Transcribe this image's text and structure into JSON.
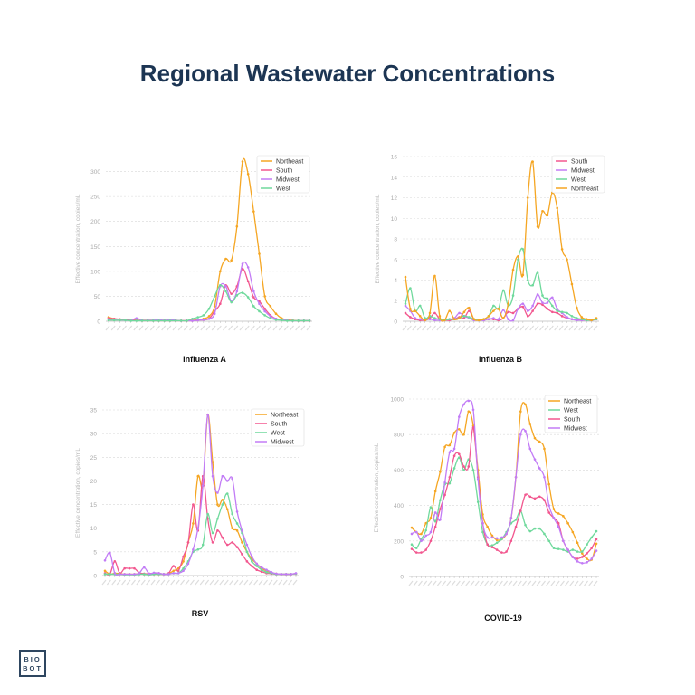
{
  "page_title": "Regional Wastewater Concentrations",
  "logo_text": [
    "BIO",
    "BOT"
  ],
  "colors": {
    "Northeast": "#f5a623",
    "South": "#f2578f",
    "Midwest": "#c27cf6",
    "West": "#6fd99c",
    "title": "#1c3553"
  },
  "chart_data": [
    {
      "type": "line",
      "title": "Influenza A",
      "ylabel": "Effective concentration, copies/mL",
      "ylim": [
        0,
        330
      ],
      "yticks": [
        0,
        50,
        100,
        150,
        200,
        250,
        300
      ],
      "grid": true,
      "legend_position": "top-right",
      "legend": [
        "Northeast",
        "South",
        "Midwest",
        "West"
      ],
      "series": [
        {
          "name": "Northeast",
          "values": [
            8,
            5,
            4,
            3,
            3,
            2,
            2,
            2,
            2,
            2,
            2,
            2,
            2,
            1,
            1,
            2,
            3,
            5,
            10,
            30,
            100,
            125,
            122,
            190,
            320,
            295,
            220,
            135,
            50,
            30,
            15,
            6,
            3,
            2,
            1,
            1,
            1
          ]
        },
        {
          "name": "South",
          "values": [
            6,
            5,
            4,
            3,
            2,
            2,
            1,
            1,
            1,
            1,
            1,
            1,
            1,
            1,
            1,
            1,
            2,
            3,
            5,
            20,
            35,
            72,
            55,
            70,
            105,
            80,
            48,
            40,
            25,
            12,
            5,
            3,
            2,
            1,
            1,
            1,
            1
          ]
        },
        {
          "name": "Midwest",
          "values": [
            4,
            3,
            2,
            2,
            2,
            6,
            2,
            2,
            2,
            3,
            2,
            3,
            2,
            1,
            1,
            1,
            2,
            3,
            5,
            15,
            70,
            70,
            40,
            60,
            115,
            108,
            60,
            35,
            20,
            10,
            5,
            3,
            2,
            1,
            1,
            1,
            1
          ]
        },
        {
          "name": "West",
          "values": [
            2,
            2,
            2,
            2,
            1,
            1,
            1,
            1,
            1,
            1,
            1,
            1,
            1,
            1,
            1,
            5,
            8,
            12,
            25,
            50,
            72,
            60,
            38,
            52,
            57,
            48,
            30,
            20,
            12,
            6,
            3,
            2,
            1,
            1,
            1,
            1,
            1
          ]
        }
      ]
    },
    {
      "type": "line",
      "title": "Influenza B",
      "ylabel": "Effective concentration, copies/mL",
      "ylim": [
        0,
        16
      ],
      "yticks": [
        0,
        2,
        4,
        6,
        8,
        10,
        12,
        14,
        16
      ],
      "grid": true,
      "legend_position": "top-right",
      "legend": [
        "South",
        "Midwest",
        "West",
        "Northeast"
      ],
      "series": [
        {
          "name": "South",
          "values": [
            0.8,
            0.4,
            0.2,
            0.1,
            0.1,
            0.3,
            0.8,
            0.2,
            0.1,
            0.1,
            0.2,
            0.4,
            0.3,
            1,
            0.2,
            0.1,
            0.1,
            0.2,
            0.2,
            0.1,
            0.3,
            0.9,
            0.8,
            1.2,
            1.4,
            0.5,
            1,
            1.7,
            1.6,
            1.2,
            0.9,
            0.8,
            0.5,
            0.3,
            0.2,
            0.2,
            0.1,
            0.1,
            0.1,
            0.2
          ]
        },
        {
          "name": "Midwest",
          "values": [
            1.5,
            1,
            0.3,
            0.2,
            0.1,
            0.2,
            0.1,
            0.1,
            0.1,
            0.2,
            0.3,
            0.8,
            0.5,
            0.3,
            0.1,
            0.1,
            0.1,
            0.2,
            0.3,
            0.2,
            1.1,
            0.2,
            0.1,
            1.2,
            1.7,
            1,
            1.5,
            2.6,
            1.8,
            1.8,
            2.3,
            1.2,
            0.8,
            0.4,
            0.2,
            0.1,
            0.1,
            0.1,
            0.1,
            0.2
          ]
        },
        {
          "name": "West",
          "values": [
            1.7,
            3.2,
            1,
            1.5,
            0.3,
            0.5,
            0.3,
            0.2,
            0.1,
            0.2,
            0.2,
            0.3,
            0.5,
            0.4,
            0.2,
            0.1,
            0.2,
            0.5,
            1.5,
            1.2,
            3,
            1.5,
            2.5,
            6,
            7,
            4,
            3.5,
            4.7,
            2.5,
            2.2,
            1.5,
            1,
            0.9,
            0.8,
            0.5,
            0.3,
            0.2,
            0.1,
            0.1,
            0.2
          ]
        },
        {
          "name": "Northeast",
          "values": [
            4.3,
            1.2,
            1,
            0.5,
            0.1,
            0.8,
            4.4,
            0.5,
            0.1,
            1,
            0.2,
            0.3,
            0.9,
            1.3,
            0.2,
            0.1,
            0.2,
            0.5,
            1,
            1.2,
            0.3,
            1.7,
            5,
            6.3,
            4.5,
            12,
            15.5,
            9.2,
            10.7,
            10.3,
            12.5,
            11,
            7,
            6,
            3.6,
            1.3,
            0.4,
            0.2,
            0.1,
            0.3
          ]
        }
      ]
    },
    {
      "type": "line",
      "title": "RSV",
      "ylabel": "Effective concentration, copies/mL",
      "ylim": [
        0,
        35
      ],
      "yticks": [
        0,
        5,
        10,
        15,
        20,
        25,
        30,
        35
      ],
      "grid": true,
      "legend_position": "top-right",
      "legend": [
        "Northeast",
        "South",
        "West",
        "Midwest"
      ],
      "series": [
        {
          "name": "Northeast",
          "values": [
            1,
            0.3,
            0.5,
            0.4,
            0.3,
            0.3,
            0.3,
            0.4,
            0.3,
            0.4,
            0.3,
            0.3,
            0.3,
            0.4,
            1,
            1.5,
            3,
            7,
            11,
            21,
            19,
            34,
            24,
            15,
            16,
            14,
            10,
            9.5,
            7,
            5,
            3.5,
            2.5,
            1.5,
            1,
            0.6,
            0.4,
            0.3,
            0.3,
            0.3,
            0.4
          ]
        },
        {
          "name": "South",
          "values": [
            0.5,
            0.3,
            3,
            0.5,
            1.5,
            1.5,
            1.5,
            0.6,
            0.4,
            0.4,
            0.5,
            0.5,
            0.3,
            0.5,
            2,
            1,
            4,
            7,
            15,
            9.5,
            21,
            12,
            7,
            9.5,
            8,
            6.5,
            7,
            6,
            4.5,
            3,
            2,
            1.2,
            0.8,
            0.5,
            0.4,
            0.3,
            0.3,
            0.3,
            0.3,
            0.4
          ]
        },
        {
          "name": "West",
          "values": [
            0.3,
            0.3,
            0.3,
            0.3,
            0.2,
            0.2,
            0.2,
            0.3,
            0.3,
            0.2,
            0.3,
            0.3,
            0.3,
            0.3,
            0.5,
            0.5,
            1.5,
            3,
            5,
            5.5,
            6.5,
            13,
            9,
            12,
            15,
            17.3,
            13,
            11,
            9,
            5,
            3,
            2,
            1.2,
            0.7,
            0.5,
            0.3,
            0.3,
            0.3,
            0.3,
            0.4
          ]
        },
        {
          "name": "Midwest",
          "values": [
            3.2,
            4.8,
            0.5,
            0.3,
            0.3,
            0.3,
            0.3,
            0.5,
            1.7,
            0.4,
            0.6,
            0.5,
            0.3,
            0.3,
            0.5,
            0.5,
            1,
            2.5,
            5.5,
            10,
            19,
            34,
            21,
            17.5,
            21,
            20,
            20.5,
            13.5,
            9.5,
            6.5,
            4,
            2.5,
            1.7,
            1.2,
            0.7,
            0.4,
            0.3,
            0.3,
            0.3,
            0.5
          ]
        }
      ]
    },
    {
      "type": "line",
      "title": "COVID-19",
      "ylabel": "Effective concentration, copies/mL",
      "ylim": [
        0,
        1000
      ],
      "yticks": [
        0,
        200,
        400,
        600,
        800,
        1000
      ],
      "grid": true,
      "legend_position": "top-right",
      "legend": [
        "Northeast",
        "West",
        "South",
        "Midwest"
      ],
      "series": [
        {
          "name": "Northeast",
          "values": [
            275,
            250,
            240,
            300,
            330,
            480,
            590,
            730,
            740,
            810,
            830,
            800,
            930,
            850,
            600,
            350,
            280,
            230,
            205,
            210,
            240,
            330,
            560,
            930,
            970,
            860,
            780,
            760,
            720,
            520,
            380,
            355,
            340,
            300,
            250,
            190,
            130,
            100,
            95,
            185
          ]
        },
        {
          "name": "West",
          "values": [
            180,
            160,
            210,
            260,
            390,
            310,
            430,
            520,
            525,
            610,
            670,
            600,
            660,
            600,
            420,
            250,
            180,
            175,
            190,
            210,
            250,
            300,
            320,
            370,
            290,
            255,
            270,
            270,
            240,
            200,
            160,
            155,
            150,
            140,
            150,
            140,
            140,
            180,
            220,
            255
          ]
        },
        {
          "name": "South",
          "values": [
            155,
            135,
            135,
            150,
            200,
            280,
            380,
            460,
            560,
            680,
            690,
            620,
            620,
            840,
            560,
            300,
            180,
            165,
            150,
            135,
            140,
            200,
            280,
            370,
            460,
            450,
            440,
            450,
            430,
            360,
            330,
            300,
            200,
            150,
            110,
            100,
            110,
            130,
            160,
            210
          ]
        },
        {
          "name": "Midwest",
          "values": [
            240,
            250,
            200,
            230,
            250,
            360,
            320,
            530,
            700,
            720,
            900,
            970,
            990,
            940,
            550,
            300,
            220,
            220,
            215,
            220,
            240,
            330,
            560,
            800,
            820,
            720,
            660,
            610,
            560,
            400,
            330,
            280,
            200,
            150,
            110,
            85,
            75,
            80,
            100,
            145
          ]
        }
      ]
    }
  ]
}
